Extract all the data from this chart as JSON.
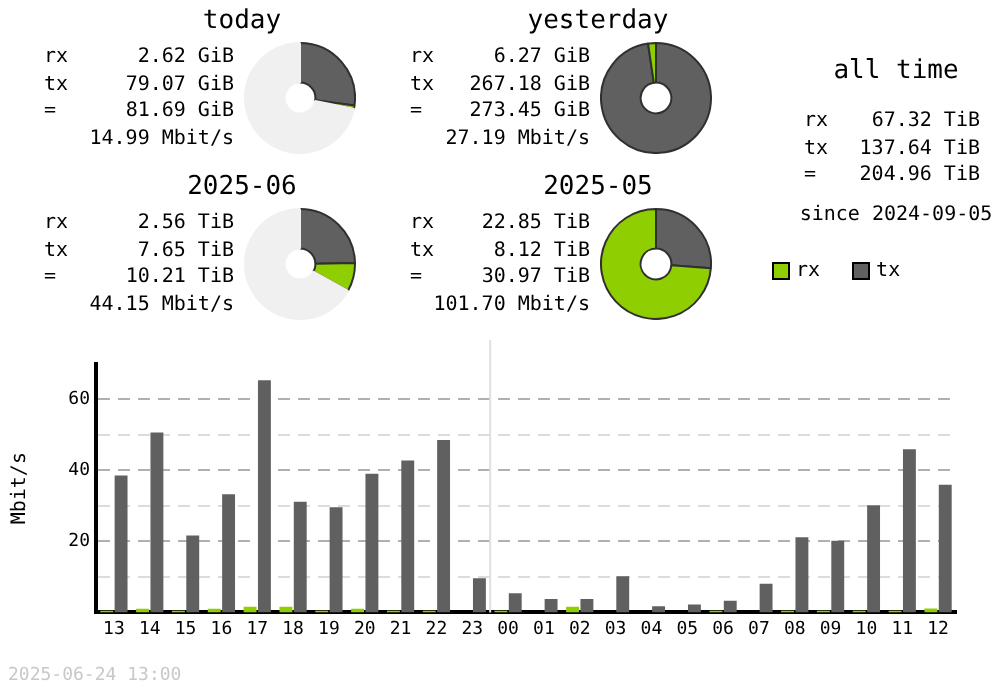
{
  "chart_data": [
    {
      "type": "donut",
      "title": "today",
      "categories": [
        null,
        null,
        null
      ],
      "values": [
        27.2,
        0.9,
        71.9
      ],
      "colors": [
        "#606060",
        "#8fce00",
        "#f0f0f0"
      ],
      "annotations": [
        "rx 2.62 GiB",
        "tx 79.07 GiB",
        "= 81.69 GiB",
        "14.99 Mbit/s"
      ]
    },
    {
      "type": "donut",
      "title": "yesterday",
      "categories": [
        null,
        null,
        null
      ],
      "values": [
        97.7,
        2.3,
        0
      ],
      "colors": [
        "#606060",
        "#8fce00",
        "#f0f0f0"
      ],
      "annotations": [
        "rx 6.27 GiB",
        "tx 267.18 GiB",
        "= 273.45 GiB",
        "27.19 Mbit/s"
      ]
    },
    {
      "type": "donut",
      "title": "2025-06",
      "categories": [
        null,
        null,
        null
      ],
      "values": [
        24.7,
        8.4,
        66.9
      ],
      "colors": [
        "#606060",
        "#8fce00",
        "#f0f0f0"
      ],
      "annotations": [
        "rx 2.56 TiB",
        "tx 7.65 TiB",
        "= 10.21 TiB",
        "44.15 Mbit/s"
      ]
    },
    {
      "type": "donut",
      "title": "2025-05",
      "categories": [
        null,
        null,
        null
      ],
      "values": [
        26.2,
        73.8,
        0
      ],
      "colors": [
        "#606060",
        "#8fce00",
        "#f0f0f0"
      ],
      "annotations": [
        "rx 22.85 TiB",
        "tx 8.12 TiB",
        "= 30.97 TiB",
        "101.70 Mbit/s"
      ]
    },
    {
      "type": "other",
      "title": "all time",
      "annotations": [
        "rx 67.32 TiB",
        "tx 137.64 TiB",
        "= 204.96 TiB",
        "since 2024-09-05"
      ]
    },
    {
      "type": "bar",
      "ylabel": "Mbit/s",
      "categories": [
        "13",
        "14",
        "15",
        "16",
        "17",
        "18",
        "19",
        "20",
        "21",
        "22",
        "23",
        "00",
        "01",
        "02",
        "03",
        "04",
        "05",
        "06",
        "07",
        "08",
        "09",
        "10",
        "11",
        "12"
      ],
      "series": [
        {
          "name": "rx",
          "color": "#8fce00",
          "values": [
            0.5,
            1,
            0.5,
            1,
            1.6,
            1.6,
            0.5,
            1,
            0.5,
            0.5,
            0,
            0.5,
            0,
            1.6,
            0,
            0,
            0,
            0.5,
            0,
            0.5,
            0.5,
            0.5,
            0.5,
            1.1
          ]
        },
        {
          "name": "tx",
          "color": "#606060",
          "values": [
            38.6,
            50.7,
            21.7,
            33.3,
            65.4,
            31.2,
            29.6,
            39.1,
            42.8,
            48.6,
            9.6,
            5.4,
            3.8,
            3.8,
            10.2,
            1.7,
            2.2,
            3.3,
            8.1,
            21.2,
            20.2,
            30.2,
            46,
            36
          ]
        }
      ],
      "ylim": [
        0,
        70
      ],
      "yticks": [
        {
          "value": 10,
          "label": null
        },
        20,
        {
          "value": 30,
          "label": null
        },
        40,
        {
          "value": 50,
          "label": null
        },
        60
      ],
      "grid": "y",
      "legend": "top right",
      "ref_lines": [
        {
          "axis": "x",
          "value": "00",
          "color": "#e0e0e0"
        }
      ],
      "annotations": [
        "2025-06-24 13:00"
      ]
    }
  ]
}
